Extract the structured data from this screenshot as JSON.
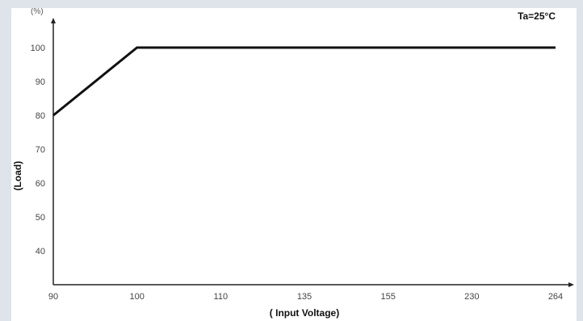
{
  "chart_data": {
    "type": "line",
    "x_categories": [
      "90",
      "100",
      "110",
      "135",
      "155",
      "230",
      "264"
    ],
    "y_ticks": [
      40,
      50,
      60,
      70,
      80,
      90,
      100
    ],
    "y_unit": "(%)",
    "ylabel": "(Load)",
    "xlabel": "( Input Voltage)",
    "annotation": "Ta=25°C",
    "ylim": [
      30,
      105
    ],
    "grid": false,
    "series": [
      {
        "x": [
          "90",
          "100",
          "110",
          "135",
          "155",
          "230",
          "264"
        ],
        "y": [
          80,
          100,
          100,
          100,
          100,
          100,
          100
        ]
      }
    ],
    "line_color": "#111111",
    "axis_color": "#222222"
  }
}
